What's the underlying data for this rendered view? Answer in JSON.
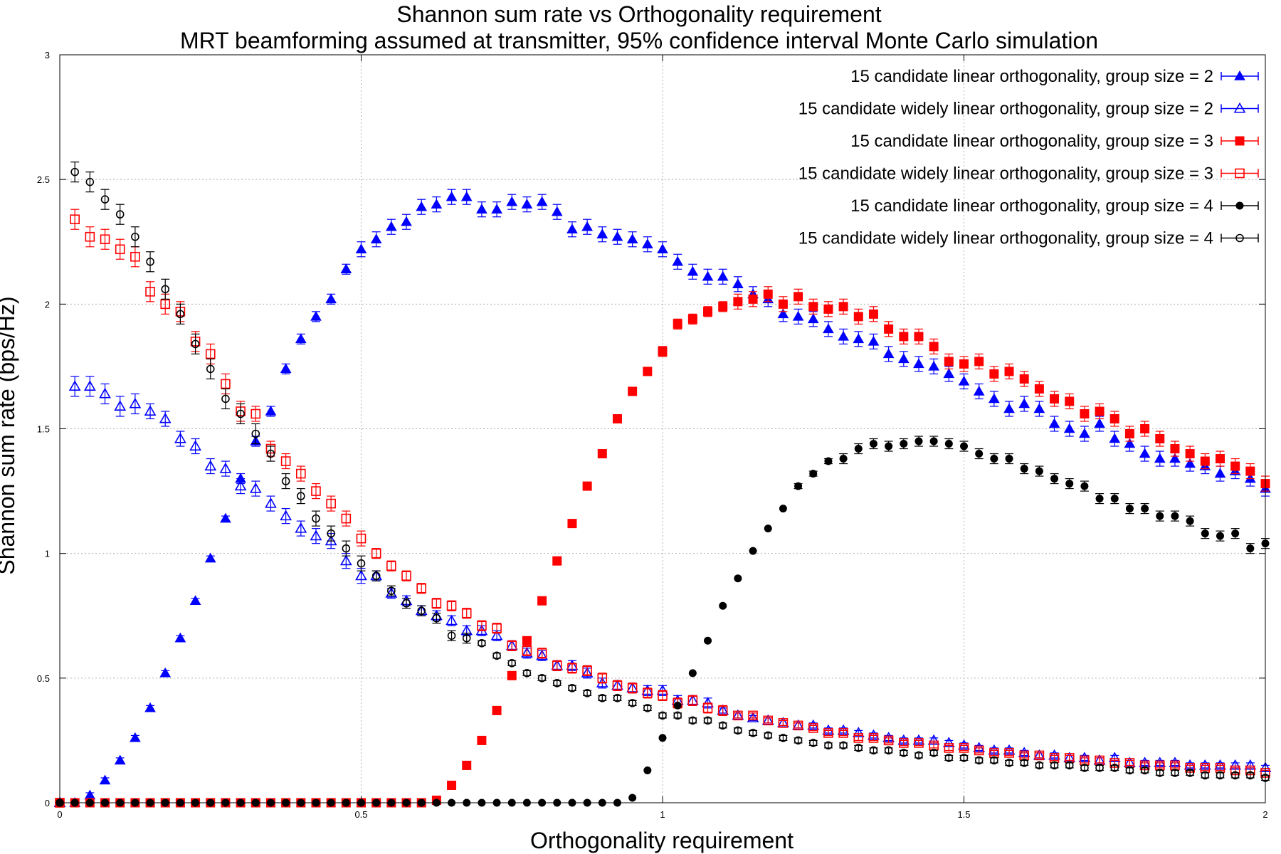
{
  "chart_data": {
    "type": "scatter",
    "title": "Shannon sum rate vs Orthogonality requirement",
    "subtitle": "MRT beamforming assumed at transmitter, 95% confidence interval Monte Carlo simulation",
    "xlabel": "Orthogonality requirement",
    "ylabel": "Shannon sum rate (bps/Hz)",
    "xlim": [
      0,
      2
    ],
    "ylim": [
      0,
      3
    ],
    "x_ticks": [
      "0",
      "0.5",
      "1",
      "1.5",
      "2"
    ],
    "y_ticks": [
      "0",
      "0.5",
      "1",
      "1.5",
      "2",
      "2.5",
      "3"
    ],
    "grid": true,
    "legend_position": "top-right",
    "x": [
      0,
      0.025,
      0.05,
      0.075,
      0.1,
      0.125,
      0.15,
      0.175,
      0.2,
      0.225,
      0.25,
      0.275,
      0.3,
      0.325,
      0.35,
      0.375,
      0.4,
      0.425,
      0.45,
      0.475,
      0.5,
      0.525,
      0.55,
      0.575,
      0.6,
      0.625,
      0.65,
      0.675,
      0.7,
      0.725,
      0.75,
      0.775,
      0.8,
      0.825,
      0.85,
      0.875,
      0.9,
      0.925,
      0.95,
      0.975,
      1.0,
      1.025,
      1.05,
      1.075,
      1.1,
      1.125,
      1.15,
      1.175,
      1.2,
      1.225,
      1.25,
      1.275,
      1.3,
      1.325,
      1.35,
      1.375,
      1.4,
      1.425,
      1.45,
      1.475,
      1.5,
      1.525,
      1.55,
      1.575,
      1.6,
      1.625,
      1.65,
      1.675,
      1.7,
      1.725,
      1.75,
      1.775,
      1.8,
      1.825,
      1.85,
      1.875,
      1.9,
      1.925,
      1.95,
      1.975,
      2.0
    ],
    "series": [
      {
        "name": "15 candidate linear orthogonality, group size = 2",
        "color": "#0000ff",
        "marker": "triangle",
        "filled": true,
        "values": [
          0,
          0,
          0.03,
          0.09,
          0.17,
          0.26,
          0.38,
          0.52,
          0.66,
          0.81,
          0.98,
          1.14,
          1.3,
          1.45,
          1.57,
          1.74,
          1.86,
          1.95,
          2.02,
          2.14,
          2.22,
          2.26,
          2.31,
          2.33,
          2.39,
          2.4,
          2.43,
          2.43,
          2.38,
          2.38,
          2.41,
          2.4,
          2.41,
          2.37,
          2.3,
          2.31,
          2.28,
          2.27,
          2.26,
          2.24,
          2.22,
          2.17,
          2.13,
          2.11,
          2.11,
          2.08,
          2.04,
          2.02,
          1.96,
          1.95,
          1.94,
          1.9,
          1.87,
          1.86,
          1.85,
          1.8,
          1.78,
          1.76,
          1.75,
          1.72,
          1.69,
          1.65,
          1.62,
          1.58,
          1.6,
          1.58,
          1.52,
          1.5,
          1.48,
          1.52,
          1.46,
          1.44,
          1.4,
          1.38,
          1.38,
          1.36,
          1.35,
          1.32,
          1.33,
          1.3,
          1.26
        ],
        "errors": [
          0,
          0,
          0.01,
          0.01,
          0.01,
          0.01,
          0.01,
          0.01,
          0.01,
          0.01,
          0.01,
          0.01,
          0.02,
          0.02,
          0.02,
          0.02,
          0.02,
          0.02,
          0.02,
          0.02,
          0.03,
          0.03,
          0.03,
          0.03,
          0.03,
          0.03,
          0.03,
          0.03,
          0.03,
          0.03,
          0.03,
          0.03,
          0.03,
          0.03,
          0.03,
          0.03,
          0.03,
          0.03,
          0.03,
          0.03,
          0.03,
          0.03,
          0.03,
          0.03,
          0.03,
          0.03,
          0.03,
          0.03,
          0.03,
          0.03,
          0.03,
          0.03,
          0.03,
          0.03,
          0.03,
          0.03,
          0.03,
          0.03,
          0.03,
          0.03,
          0.03,
          0.03,
          0.03,
          0.03,
          0.03,
          0.03,
          0.03,
          0.03,
          0.03,
          0.03,
          0.03,
          0.03,
          0.03,
          0.03,
          0.03,
          0.03,
          0.03,
          0.03,
          0.03,
          0.03,
          0.03
        ]
      },
      {
        "name": "15 candidate widely linear orthogonality, group size = 2",
        "color": "#0000ff",
        "marker": "triangle",
        "filled": false,
        "values": [
          0,
          1.67,
          1.67,
          1.64,
          1.59,
          1.6,
          1.57,
          1.54,
          1.46,
          1.43,
          1.35,
          1.34,
          1.27,
          1.26,
          1.2,
          1.15,
          1.1,
          1.07,
          1.05,
          0.97,
          0.91,
          0.91,
          0.84,
          0.81,
          0.77,
          0.75,
          0.73,
          0.69,
          0.69,
          0.67,
          0.63,
          0.6,
          0.59,
          0.55,
          0.55,
          0.52,
          0.48,
          0.47,
          0.46,
          0.45,
          0.45,
          0.41,
          0.41,
          0.4,
          0.37,
          0.35,
          0.34,
          0.33,
          0.32,
          0.31,
          0.31,
          0.29,
          0.29,
          0.28,
          0.27,
          0.26,
          0.25,
          0.25,
          0.25,
          0.24,
          0.23,
          0.22,
          0.21,
          0.21,
          0.2,
          0.19,
          0.19,
          0.18,
          0.18,
          0.17,
          0.18,
          0.16,
          0.16,
          0.16,
          0.16,
          0.15,
          0.15,
          0.15,
          0.15,
          0.15,
          0.14
        ],
        "errors": [
          0,
          0.04,
          0.04,
          0.04,
          0.04,
          0.04,
          0.03,
          0.03,
          0.03,
          0.03,
          0.03,
          0.03,
          0.03,
          0.03,
          0.03,
          0.03,
          0.03,
          0.03,
          0.03,
          0.03,
          0.03,
          0.02,
          0.02,
          0.02,
          0.02,
          0.02,
          0.02,
          0.02,
          0.02,
          0.02,
          0.02,
          0.02,
          0.02,
          0.02,
          0.02,
          0.02,
          0.02,
          0.02,
          0.02,
          0.02,
          0.02,
          0.02,
          0.02,
          0.02,
          0.01,
          0.01,
          0.01,
          0.01,
          0.01,
          0.01,
          0.01,
          0.01,
          0.01,
          0.01,
          0.01,
          0.01,
          0.01,
          0.01,
          0.01,
          0.01,
          0.01,
          0.01,
          0.01,
          0.01,
          0.01,
          0.01,
          0.01,
          0.01,
          0.01,
          0.01,
          0.01,
          0.01,
          0.01,
          0.01,
          0.01,
          0.01,
          0.01,
          0.01,
          0.01,
          0.01,
          0.01
        ]
      },
      {
        "name": "15 candidate linear orthogonality, group size = 3",
        "color": "#ff0000",
        "marker": "square",
        "filled": true,
        "values": [
          0,
          0,
          0,
          0,
          0,
          0,
          0,
          0,
          0,
          0,
          0,
          0,
          0,
          0,
          0,
          0,
          0,
          0,
          0,
          0,
          0,
          0,
          0,
          0,
          0,
          0.01,
          0.07,
          0.15,
          0.25,
          0.37,
          0.51,
          0.65,
          0.81,
          0.97,
          1.12,
          1.27,
          1.4,
          1.54,
          1.65,
          1.73,
          1.81,
          1.92,
          1.94,
          1.97,
          1.99,
          2.01,
          2.02,
          2.04,
          2.0,
          2.03,
          1.99,
          1.98,
          1.99,
          1.95,
          1.96,
          1.9,
          1.87,
          1.87,
          1.83,
          1.77,
          1.76,
          1.77,
          1.72,
          1.73,
          1.7,
          1.66,
          1.62,
          1.61,
          1.56,
          1.57,
          1.54,
          1.48,
          1.5,
          1.46,
          1.42,
          1.4,
          1.37,
          1.38,
          1.35,
          1.33,
          1.28
        ],
        "errors": [
          0,
          0,
          0,
          0,
          0,
          0,
          0,
          0,
          0,
          0,
          0,
          0,
          0,
          0,
          0,
          0,
          0,
          0,
          0,
          0,
          0,
          0,
          0,
          0,
          0,
          0,
          0,
          0,
          0,
          0,
          0,
          0,
          0,
          0,
          0,
          0,
          0,
          0,
          0,
          0.01,
          0.02,
          0.02,
          0.02,
          0.02,
          0.02,
          0.03,
          0.03,
          0.03,
          0.03,
          0.03,
          0.03,
          0.03,
          0.03,
          0.03,
          0.03,
          0.03,
          0.03,
          0.03,
          0.03,
          0.03,
          0.03,
          0.03,
          0.03,
          0.03,
          0.03,
          0.03,
          0.03,
          0.03,
          0.03,
          0.03,
          0.03,
          0.03,
          0.03,
          0.03,
          0.03,
          0.03,
          0.03,
          0.03,
          0.03,
          0.03,
          0.03
        ]
      },
      {
        "name": "15 candidate widely linear orthogonality, group size = 3",
        "color": "#ff0000",
        "marker": "square",
        "filled": false,
        "values": [
          0,
          2.34,
          2.27,
          2.26,
          2.22,
          2.19,
          2.05,
          2.0,
          1.97,
          1.85,
          1.8,
          1.68,
          1.57,
          1.56,
          1.42,
          1.37,
          1.32,
          1.25,
          1.2,
          1.14,
          1.06,
          1.0,
          0.95,
          0.91,
          0.86,
          0.8,
          0.79,
          0.76,
          0.71,
          0.7,
          0.63,
          0.61,
          0.6,
          0.55,
          0.54,
          0.53,
          0.5,
          0.47,
          0.46,
          0.44,
          0.43,
          0.4,
          0.41,
          0.38,
          0.37,
          0.35,
          0.35,
          0.33,
          0.32,
          0.31,
          0.3,
          0.28,
          0.28,
          0.26,
          0.26,
          0.25,
          0.24,
          0.24,
          0.23,
          0.22,
          0.22,
          0.21,
          0.2,
          0.2,
          0.19,
          0.19,
          0.18,
          0.18,
          0.17,
          0.17,
          0.16,
          0.16,
          0.15,
          0.15,
          0.15,
          0.14,
          0.14,
          0.14,
          0.13,
          0.13,
          0.12
        ],
        "errors": [
          0,
          0.04,
          0.04,
          0.04,
          0.04,
          0.04,
          0.04,
          0.04,
          0.04,
          0.04,
          0.04,
          0.04,
          0.04,
          0.03,
          0.03,
          0.03,
          0.03,
          0.03,
          0.03,
          0.03,
          0.03,
          0.02,
          0.02,
          0.02,
          0.02,
          0.02,
          0.02,
          0.02,
          0.02,
          0.02,
          0.02,
          0.02,
          0.02,
          0.02,
          0.02,
          0.02,
          0.02,
          0.02,
          0.02,
          0.02,
          0.02,
          0.02,
          0.02,
          0.02,
          0.02,
          0.01,
          0.01,
          0.01,
          0.01,
          0.01,
          0.01,
          0.01,
          0.01,
          0.01,
          0.01,
          0.01,
          0.01,
          0.01,
          0.01,
          0.01,
          0.01,
          0.01,
          0.01,
          0.01,
          0.01,
          0.01,
          0.01,
          0.01,
          0.01,
          0.01,
          0.01,
          0.01,
          0.01,
          0.01,
          0.01,
          0.01,
          0.01,
          0.01,
          0.01,
          0.01,
          0.01
        ]
      },
      {
        "name": "15 candidate linear orthogonality, group size = 4",
        "color": "#000000",
        "marker": "circle",
        "filled": true,
        "values": [
          0,
          0,
          0,
          0,
          0,
          0,
          0,
          0,
          0,
          0,
          0,
          0,
          0,
          0,
          0,
          0,
          0,
          0,
          0,
          0,
          0,
          0,
          0,
          0,
          0,
          0,
          0,
          0,
          0,
          0,
          0,
          0,
          0,
          0,
          0,
          0,
          0,
          0,
          0.02,
          0.13,
          0.26,
          0.39,
          0.52,
          0.65,
          0.79,
          0.9,
          1.01,
          1.1,
          1.18,
          1.27,
          1.32,
          1.37,
          1.38,
          1.42,
          1.44,
          1.43,
          1.44,
          1.45,
          1.45,
          1.44,
          1.43,
          1.4,
          1.38,
          1.38,
          1.34,
          1.33,
          1.3,
          1.28,
          1.27,
          1.22,
          1.22,
          1.18,
          1.18,
          1.15,
          1.15,
          1.13,
          1.08,
          1.07,
          1.08,
          1.02,
          1.04
        ],
        "errors": [
          0,
          0,
          0,
          0,
          0,
          0,
          0,
          0,
          0,
          0,
          0,
          0,
          0,
          0,
          0,
          0,
          0,
          0,
          0,
          0,
          0,
          0,
          0,
          0,
          0,
          0,
          0,
          0,
          0,
          0,
          0,
          0,
          0,
          0,
          0,
          0,
          0,
          0,
          0,
          0,
          0,
          0,
          0,
          0,
          0,
          0,
          0,
          0,
          0,
          0.01,
          0.01,
          0.01,
          0.02,
          0.02,
          0.02,
          0.02,
          0.02,
          0.02,
          0.02,
          0.02,
          0.02,
          0.02,
          0.02,
          0.02,
          0.02,
          0.02,
          0.02,
          0.02,
          0.02,
          0.02,
          0.02,
          0.02,
          0.02,
          0.02,
          0.02,
          0.02,
          0.02,
          0.02,
          0.02,
          0.02,
          0.02
        ]
      },
      {
        "name": "15 candidate widely linear orthogonality, group size = 4",
        "color": "#000000",
        "marker": "circle",
        "filled": false,
        "values": [
          0,
          2.53,
          2.49,
          2.42,
          2.36,
          2.27,
          2.17,
          2.06,
          1.96,
          1.84,
          1.74,
          1.62,
          1.56,
          1.48,
          1.4,
          1.29,
          1.23,
          1.14,
          1.08,
          1.02,
          0.96,
          0.91,
          0.85,
          0.8,
          0.77,
          0.74,
          0.67,
          0.66,
          0.64,
          0.59,
          0.56,
          0.52,
          0.5,
          0.48,
          0.46,
          0.44,
          0.42,
          0.42,
          0.4,
          0.38,
          0.35,
          0.35,
          0.33,
          0.33,
          0.31,
          0.29,
          0.28,
          0.27,
          0.26,
          0.25,
          0.24,
          0.23,
          0.23,
          0.22,
          0.21,
          0.21,
          0.2,
          0.19,
          0.2,
          0.18,
          0.18,
          0.17,
          0.17,
          0.16,
          0.16,
          0.15,
          0.15,
          0.15,
          0.14,
          0.14,
          0.14,
          0.13,
          0.13,
          0.12,
          0.12,
          0.12,
          0.11,
          0.11,
          0.11,
          0.11,
          0.1
        ],
        "errors": [
          0,
          0.04,
          0.04,
          0.04,
          0.04,
          0.04,
          0.04,
          0.04,
          0.04,
          0.04,
          0.04,
          0.04,
          0.04,
          0.04,
          0.03,
          0.03,
          0.03,
          0.03,
          0.03,
          0.03,
          0.03,
          0.02,
          0.02,
          0.02,
          0.02,
          0.02,
          0.02,
          0.02,
          0.01,
          0.01,
          0.01,
          0.01,
          0.01,
          0.01,
          0.01,
          0.01,
          0.01,
          0.01,
          0.01,
          0.01,
          0.01,
          0.01,
          0.01,
          0.01,
          0.01,
          0.01,
          0.01,
          0.01,
          0.01,
          0.01,
          0.01,
          0.01,
          0.01,
          0.01,
          0.01,
          0.01,
          0.01,
          0.01,
          0.01,
          0.01,
          0.01,
          0.01,
          0.01,
          0.01,
          0.01,
          0.01,
          0.01,
          0.01,
          0.01,
          0.01,
          0.01,
          0.01,
          0.01,
          0.01,
          0.01,
          0.01,
          0.01,
          0.01,
          0.01,
          0.01,
          0.01
        ]
      }
    ]
  }
}
